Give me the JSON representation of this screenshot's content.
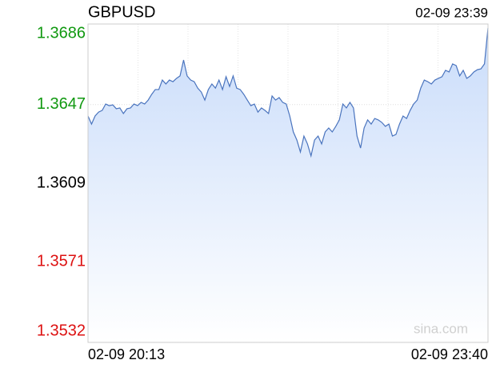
{
  "chart_data": {
    "type": "line",
    "title": "GBPUSD",
    "timestamp": "02-09 23:39",
    "watermark": "sina.com",
    "x_labels": [
      "02-09 20:13",
      "02-09 23:40"
    ],
    "ylim": [
      1.3532,
      1.3686
    ],
    "yticks": [
      1.3686,
      1.3647,
      1.3609,
      1.3571,
      1.3532
    ],
    "up_color": "#119911",
    "down_color": "#dd1111",
    "flat_color": "#000000",
    "line_color": "#4a74be",
    "fill_color": "#c9dcfa",
    "grid": true,
    "xgrid_divisions": 8,
    "series": [
      {
        "name": "GBPUSD",
        "values": [
          1.36415,
          1.36376,
          1.36415,
          1.36434,
          1.36442,
          1.36473,
          1.36465,
          1.36469,
          1.3645,
          1.36454,
          1.36427,
          1.3645,
          1.36454,
          1.36473,
          1.36465,
          1.36481,
          1.36473,
          1.36492,
          1.3652,
          1.36543,
          1.36543,
          1.36589,
          1.3657,
          1.36589,
          1.36581,
          1.36597,
          1.36609,
          1.36686,
          1.36609,
          1.36589,
          1.36581,
          1.3655,
          1.36531,
          1.36492,
          1.36543,
          1.3657,
          1.3655,
          1.36589,
          1.36543,
          1.36605,
          1.36558,
          1.36609,
          1.3655,
          1.36543,
          1.3652,
          1.36492,
          1.36465,
          1.36473,
          1.36434,
          1.36454,
          1.36442,
          1.36427,
          1.36512,
          1.36492,
          1.36504,
          1.36481,
          1.36473,
          1.36415,
          1.36338,
          1.36299,
          1.36241,
          1.36318,
          1.3628,
          1.36222,
          1.36299,
          1.36318,
          1.3628,
          1.36338,
          1.36357,
          1.36338,
          1.36365,
          1.36396,
          1.36473,
          1.36454,
          1.36481,
          1.36454,
          1.36318,
          1.3626,
          1.36357,
          1.36396,
          1.36376,
          1.36403,
          1.36396,
          1.36384,
          1.36365,
          1.36376,
          1.36318,
          1.36326,
          1.36376,
          1.36415,
          1.36403,
          1.36442,
          1.36473,
          1.36492,
          1.3655,
          1.36589,
          1.36581,
          1.3657,
          1.36589,
          1.36597,
          1.36605,
          1.36636,
          1.36628,
          1.36667,
          1.36659,
          1.36609,
          1.36636,
          1.36597,
          1.36609,
          1.36628,
          1.36639,
          1.36643,
          1.36667,
          1.36841
        ]
      }
    ]
  }
}
